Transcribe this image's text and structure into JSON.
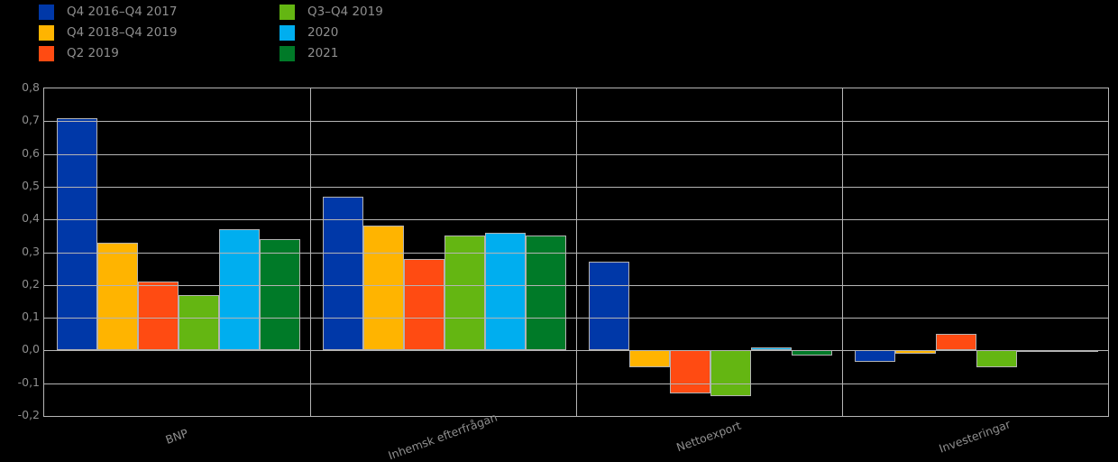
{
  "chart_data": {
    "type": "bar",
    "title": "",
    "categories": [
      "BNP",
      "Inhemsk efterfrågan",
      "Nettoexport",
      "Investeringar"
    ],
    "series": [
      {
        "name": "Q4 2016–Q4 2017",
        "color": "#0038A8",
        "values": [
          0.71,
          0.47,
          0.27,
          -0.035
        ]
      },
      {
        "name": "Q4 2018–Q4 2019",
        "color": "#FFB400",
        "values": [
          0.33,
          0.38,
          -0.05,
          -0.01
        ]
      },
      {
        "name": "Q2 2019",
        "color": "#FF4B12",
        "values": [
          0.21,
          0.28,
          -0.13,
          0.05
        ]
      },
      {
        "name": "Q3–Q4 2019",
        "color": "#64B612",
        "values": [
          0.17,
          0.35,
          -0.14,
          -0.05
        ]
      },
      {
        "name": "2020",
        "color": "#00AEEF",
        "values": [
          0.37,
          0.36,
          0.01,
          -0.005
        ]
      },
      {
        "name": "2021",
        "color": "#007A28",
        "values": [
          0.34,
          0.35,
          -0.015,
          -0.005
        ]
      }
    ],
    "ylim": [
      -0.2,
      0.8
    ],
    "ytick_step": 0.1,
    "ytick_labels": [
      "0,8",
      "0,7",
      "0,6",
      "0,5",
      "0,4",
      "0,3",
      "0,2",
      "0,1",
      "0,0",
      "-0,1",
      "-0,2"
    ],
    "grid": true,
    "legend_position": "top-left",
    "background": "#000000",
    "grid_color": "#b5b5b5",
    "text_color": "#8e8e8e"
  }
}
